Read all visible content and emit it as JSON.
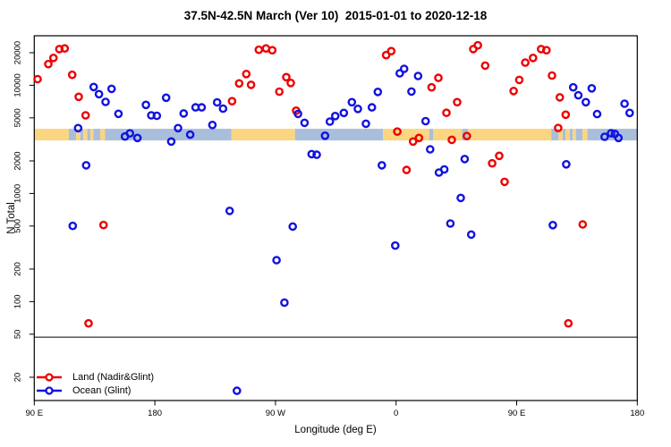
{
  "chart_data": {
    "type": "scatter",
    "title": "37.5N-42.5N March (Ver 10)  2015-01-01 to 2020-12-18",
    "xlabel": "Longitude (deg E)",
    "ylabel": "N Total",
    "x_axis": {
      "description": "continuous longitude axis spanning 450 degrees, wrapping the globe from 90E eastward to 180",
      "range": [
        90,
        540
      ],
      "ticks": [
        {
          "label": "90 E",
          "lon": 90
        },
        {
          "label": "180",
          "lon": 180
        },
        {
          "label": "90 W",
          "lon": 270
        },
        {
          "label": "0",
          "lon": 360
        },
        {
          "label": "90 E",
          "lon": 450
        },
        {
          "label": "180",
          "lon": 540
        }
      ]
    },
    "y_axis": {
      "scale": "log",
      "visible_range": [
        15,
        37000
      ],
      "ticks": [
        20000,
        10000,
        5000,
        2000,
        1000,
        500,
        200,
        100,
        50,
        20
      ]
    },
    "threshold_line_n": 47,
    "map_band": {
      "description": "land/ocean strip for latitude band drawn across plot",
      "n_center": 3500,
      "land_color": "#fcd581",
      "ocean_color": "#a9bedb",
      "segments": [
        {
          "from": 90,
          "to": 115.8,
          "type": "land"
        },
        {
          "from": 115.8,
          "to": 121.3,
          "type": "ocean"
        },
        {
          "from": 121.3,
          "to": 124.3,
          "type": "land"
        },
        {
          "from": 124.3,
          "to": 126.6,
          "type": "ocean"
        },
        {
          "from": 126.6,
          "to": 129.6,
          "type": "land"
        },
        {
          "from": 129.6,
          "to": 131.8,
          "type": "ocean"
        },
        {
          "from": 131.8,
          "to": 134.2,
          "type": "land"
        },
        {
          "from": 134.2,
          "to": 139.2,
          "type": "ocean"
        },
        {
          "from": 139.2,
          "to": 142.8,
          "type": "land"
        },
        {
          "from": 142.8,
          "to": 237.2,
          "type": "ocean"
        },
        {
          "from": 237.2,
          "to": 284.6,
          "type": "land"
        },
        {
          "from": 284.6,
          "to": 350.3,
          "type": "ocean"
        },
        {
          "from": 350.3,
          "to": 384.8,
          "type": "land"
        },
        {
          "from": 384.8,
          "to": 387.6,
          "type": "ocean"
        },
        {
          "from": 387.6,
          "to": 409.3,
          "type": "land"
        },
        {
          "from": 409.3,
          "to": 413.6,
          "type": "ocean"
        },
        {
          "from": 413.6,
          "to": 475.8,
          "type": "land"
        },
        {
          "from": 475.8,
          "to": 481.3,
          "type": "ocean"
        },
        {
          "from": 481.3,
          "to": 484.3,
          "type": "land"
        },
        {
          "from": 484.3,
          "to": 486.6,
          "type": "ocean"
        },
        {
          "from": 486.6,
          "to": 489.6,
          "type": "land"
        },
        {
          "from": 489.6,
          "to": 491.8,
          "type": "ocean"
        },
        {
          "from": 491.8,
          "to": 494.2,
          "type": "land"
        },
        {
          "from": 494.2,
          "to": 499.2,
          "type": "ocean"
        },
        {
          "from": 499.2,
          "to": 502.8,
          "type": "land"
        },
        {
          "from": 502.8,
          "to": 540,
          "type": "ocean"
        }
      ]
    },
    "series": [
      {
        "name": "Land (Nadir&Glint)",
        "color": "#ee0000",
        "points": [
          [
            92.5,
            11400
          ],
          [
            100.5,
            15700
          ],
          [
            104.3,
            17900
          ],
          [
            108.7,
            21600
          ],
          [
            112.7,
            21900
          ],
          [
            118.3,
            12500
          ],
          [
            123.2,
            7830
          ],
          [
            128.3,
            5280
          ],
          [
            130.5,
            63
          ],
          [
            141.7,
            511
          ],
          [
            237.6,
            7130
          ],
          [
            242.9,
            10400
          ],
          [
            248.2,
            12700
          ],
          [
            251.8,
            10100
          ],
          [
            257.6,
            21300
          ],
          [
            262.9,
            21900
          ],
          [
            267.6,
            21100
          ],
          [
            272.9,
            8740
          ],
          [
            278.1,
            11900
          ],
          [
            281.4,
            10500
          ],
          [
            285.4,
            5820
          ],
          [
            352.6,
            19000
          ],
          [
            356.4,
            20700
          ],
          [
            360.9,
            3730
          ],
          [
            367.8,
            1650
          ],
          [
            372.7,
            3020
          ],
          [
            377.1,
            3260
          ],
          [
            386.5,
            9570
          ],
          [
            391.6,
            11700
          ],
          [
            397.6,
            5560
          ],
          [
            401.6,
            3130
          ],
          [
            405.6,
            6980
          ],
          [
            412.8,
            3390
          ],
          [
            417.6,
            21600
          ],
          [
            421,
            23400
          ],
          [
            426.5,
            15200
          ],
          [
            431.7,
            1900
          ],
          [
            437,
            2230
          ],
          [
            441,
            1280
          ],
          [
            447.7,
            8860
          ],
          [
            451.9,
            11200
          ],
          [
            456.4,
            16200
          ],
          [
            462.2,
            17900
          ],
          [
            468.2,
            21600
          ],
          [
            472.2,
            21100
          ],
          [
            476.4,
            12300
          ],
          [
            481,
            4030
          ],
          [
            482.2,
            7730
          ],
          [
            486.6,
            5350
          ],
          [
            488.6,
            63
          ],
          [
            499.3,
            518
          ]
        ]
      },
      {
        "name": "Ocean (Glint)",
        "color": "#1212e0",
        "points": [
          [
            118.7,
            501
          ],
          [
            122.7,
            4020
          ],
          [
            128.7,
            1820
          ],
          [
            134.3,
            9640
          ],
          [
            138.3,
            8280
          ],
          [
            143.2,
            7020
          ],
          [
            147.7,
            9270
          ],
          [
            152.8,
            5450
          ],
          [
            157.7,
            3360
          ],
          [
            161.4,
            3590
          ],
          [
            167,
            3260
          ],
          [
            173.3,
            6590
          ],
          [
            177.3,
            5280
          ],
          [
            181.5,
            5230
          ],
          [
            188.4,
            7670
          ],
          [
            192.2,
            3020
          ],
          [
            197.3,
            4020
          ],
          [
            201.5,
            5490
          ],
          [
            206.4,
            3500
          ],
          [
            210.4,
            6250
          ],
          [
            214.9,
            6250
          ],
          [
            222.9,
            4300
          ],
          [
            226.5,
            6950
          ],
          [
            230.9,
            6090
          ],
          [
            235.8,
            690
          ],
          [
            241.2,
            15
          ],
          [
            270.8,
            242
          ],
          [
            276.7,
            98
          ],
          [
            282.9,
            495
          ],
          [
            286.8,
            5440
          ],
          [
            291.7,
            4500
          ],
          [
            297,
            2310
          ],
          [
            300.8,
            2280
          ],
          [
            307,
            3420
          ],
          [
            310.6,
            4620
          ],
          [
            314.6,
            5200
          ],
          [
            321,
            5550
          ],
          [
            327,
            6980
          ],
          [
            331.5,
            6050
          ],
          [
            337.5,
            4410
          ],
          [
            342,
            6250
          ],
          [
            346.4,
            8690
          ],
          [
            349.4,
            1820
          ],
          [
            359.4,
            330
          ],
          [
            362.7,
            12900
          ],
          [
            366,
            14200
          ],
          [
            371.5,
            8760
          ],
          [
            376.4,
            12200
          ],
          [
            382,
            4660
          ],
          [
            385.4,
            2560
          ],
          [
            392,
            1560
          ],
          [
            396,
            1670
          ],
          [
            400.5,
            528
          ],
          [
            408.3,
            910
          ],
          [
            411.2,
            2080
          ],
          [
            416.1,
            417
          ],
          [
            477,
            510
          ],
          [
            487,
            1860
          ],
          [
            492.2,
            9570
          ],
          [
            496,
            8080
          ],
          [
            501.6,
            6980
          ],
          [
            506,
            9380
          ],
          [
            510,
            5420
          ],
          [
            515.6,
            3340
          ],
          [
            520.4,
            3600
          ],
          [
            523.3,
            3550
          ],
          [
            526,
            3260
          ],
          [
            530.5,
            6760
          ],
          [
            534.3,
            5550
          ]
        ]
      }
    ],
    "legend_position": "bottom-left"
  }
}
